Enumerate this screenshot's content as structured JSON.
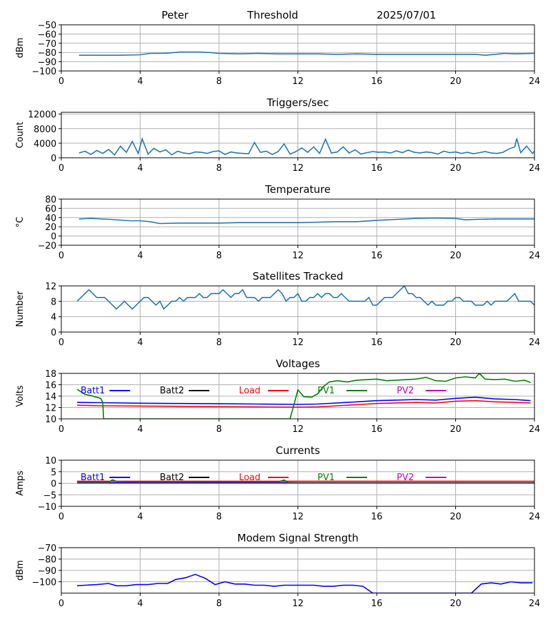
{
  "header": {
    "name": "Peter",
    "mode": "Threshold",
    "date": "2025/07/01"
  },
  "colors": {
    "default_series": "#1f77b4",
    "grid": "#b0b0b0",
    "batt1": "#0000ff",
    "batt2": "#000000",
    "load": "#ff0000",
    "pv1": "#008000",
    "pv2": "#bf00bf"
  },
  "chart_data": [
    {
      "type": "line",
      "title": "",
      "ylabel": "dBm",
      "xlim": [
        0,
        24
      ],
      "ylim": [
        -100,
        -50
      ],
      "xticks": [
        0,
        4,
        8,
        12,
        16,
        20,
        24
      ],
      "yticks": [
        -100,
        -90,
        -80,
        -70,
        -60,
        -50
      ],
      "ytick_labels": [
        "−100",
        "−90",
        "−80",
        "−70",
        "−60",
        "−50"
      ],
      "grid": true,
      "series": [
        {
          "color_key": "default_series",
          "x": [
            0.9,
            2,
            3,
            4,
            4.5,
            5,
            5.5,
            6,
            7,
            7.5,
            8,
            9,
            10,
            11,
            12,
            13,
            14,
            15,
            16,
            17,
            18,
            19,
            20,
            21,
            21.5,
            22,
            22.5,
            23,
            24
          ],
          "y": [
            -83,
            -83,
            -83,
            -82.5,
            -81,
            -81,
            -80.5,
            -79.5,
            -79.5,
            -80,
            -81,
            -81.5,
            -81,
            -81.5,
            -81.5,
            -81.5,
            -82,
            -81.5,
            -82,
            -82,
            -82,
            -82,
            -82,
            -82,
            -83,
            -82,
            -81,
            -81.5,
            -81
          ]
        }
      ]
    },
    {
      "type": "line",
      "title": "Triggers/sec",
      "ylabel": "Count",
      "xlim": [
        0,
        24
      ],
      "ylim": [
        0,
        12500
      ],
      "xticks": [
        0,
        4,
        8,
        12,
        16,
        20,
        24
      ],
      "yticks": [
        0,
        4000,
        8000,
        12000
      ],
      "ytick_labels": [
        "0",
        "4000",
        "8000",
        "12000"
      ],
      "grid": true,
      "series": [
        {
          "color_key": "default_series",
          "x": [
            0.9,
            1.2,
            1.5,
            1.8,
            2.1,
            2.4,
            2.7,
            3.0,
            3.3,
            3.6,
            3.9,
            4.1,
            4.4,
            4.7,
            5.0,
            5.3,
            5.6,
            5.9,
            6.2,
            6.5,
            6.8,
            7.1,
            7.4,
            7.7,
            8.0,
            8.3,
            8.6,
            8.9,
            9.2,
            9.5,
            9.8,
            10.1,
            10.4,
            10.7,
            11.0,
            11.3,
            11.6,
            11.9,
            12.2,
            12.5,
            12.8,
            13.1,
            13.4,
            13.7,
            14.0,
            14.3,
            14.6,
            14.9,
            15.2,
            15.5,
            15.8,
            16.1,
            16.4,
            16.7,
            17.0,
            17.3,
            17.6,
            17.9,
            18.2,
            18.5,
            18.8,
            19.1,
            19.4,
            19.7,
            20.0,
            20.3,
            20.6,
            20.9,
            21.2,
            21.5,
            21.8,
            22.1,
            22.4,
            22.7,
            23.0,
            23.1,
            23.3,
            23.6,
            23.9,
            24
          ],
          "y": [
            1300,
            1800,
            900,
            2000,
            1200,
            2300,
            800,
            3200,
            1500,
            4500,
            1200,
            5200,
            1000,
            2600,
            1600,
            2200,
            800,
            1800,
            1300,
            1100,
            1600,
            1500,
            1200,
            1700,
            1900,
            900,
            1600,
            1300,
            1200,
            1100,
            4200,
            1500,
            1800,
            900,
            1700,
            3800,
            1000,
            1700,
            2700,
            1500,
            3000,
            1200,
            5100,
            1300,
            1600,
            3000,
            1300,
            2200,
            1000,
            1400,
            1700,
            1500,
            1600,
            1300,
            1900,
            1400,
            2100,
            1500,
            1300,
            1600,
            1400,
            1000,
            1800,
            1400,
            1600,
            1200,
            1500,
            1100,
            1400,
            1700,
            1300,
            1200,
            1500,
            2400,
            3000,
            5300,
            1400,
            3200,
            1200,
            1800
          ]
        }
      ]
    },
    {
      "type": "line",
      "title": "Temperature",
      "ylabel": "°C",
      "xlim": [
        0,
        24
      ],
      "ylim": [
        -20,
        80
      ],
      "xticks": [
        0,
        4,
        8,
        12,
        16,
        20,
        24
      ],
      "yticks": [
        -20,
        0,
        20,
        40,
        60,
        80
      ],
      "ytick_labels": [
        "−20",
        "0",
        "20",
        "40",
        "60",
        "80"
      ],
      "grid": true,
      "series": [
        {
          "color_key": "default_series",
          "x": [
            0.9,
            1.5,
            2.5,
            3.5,
            4,
            4.5,
            5,
            6,
            7,
            8,
            9,
            10,
            11,
            12,
            13,
            14,
            15,
            16,
            17,
            18,
            19,
            20,
            20.5,
            21,
            22,
            23,
            24
          ],
          "y": [
            37,
            38,
            36,
            33,
            33,
            31,
            27,
            28,
            28,
            28,
            29,
            29,
            29,
            29,
            30,
            31,
            31,
            34,
            36,
            38,
            39,
            38,
            35,
            36,
            37,
            37,
            37
          ]
        }
      ]
    },
    {
      "type": "line",
      "title": "Satellites Tracked",
      "ylabel": "Number",
      "xlim": [
        0,
        24
      ],
      "ylim": [
        0,
        12
      ],
      "xticks": [
        0,
        4,
        8,
        12,
        16,
        20,
        24
      ],
      "yticks": [
        0,
        4,
        8,
        12
      ],
      "ytick_labels": [
        "0",
        "4",
        "8",
        "12"
      ],
      "grid": true,
      "series": [
        {
          "color_key": "default_series",
          "x": [
            0.8,
            1.0,
            1.2,
            1.4,
            1.6,
            1.8,
            2.0,
            2.2,
            2.4,
            2.6,
            2.8,
            3.0,
            3.2,
            3.4,
            3.6,
            3.8,
            4.0,
            4.2,
            4.4,
            4.6,
            4.8,
            5.0,
            5.2,
            5.4,
            5.6,
            5.8,
            6.0,
            6.2,
            6.4,
            6.6,
            6.8,
            7.0,
            7.2,
            7.4,
            7.6,
            7.8,
            8.0,
            8.2,
            8.4,
            8.6,
            8.8,
            9.0,
            9.2,
            9.4,
            9.6,
            9.8,
            10.0,
            10.2,
            10.4,
            10.6,
            10.8,
            11.0,
            11.2,
            11.4,
            11.6,
            11.8,
            12.0,
            12.2,
            12.4,
            12.6,
            12.8,
            13.0,
            13.2,
            13.4,
            13.6,
            13.8,
            14.0,
            14.2,
            14.4,
            14.6,
            14.8,
            15.0,
            15.2,
            15.4,
            15.6,
            15.8,
            16.0,
            16.2,
            16.4,
            16.6,
            16.8,
            17.0,
            17.2,
            17.4,
            17.6,
            17.8,
            18.0,
            18.2,
            18.4,
            18.6,
            18.8,
            19.0,
            19.2,
            19.4,
            19.6,
            19.8,
            20.0,
            20.2,
            20.4,
            20.6,
            20.8,
            21.0,
            21.2,
            21.4,
            21.6,
            21.8,
            22.0,
            22.2,
            22.4,
            22.6,
            22.8,
            23.0,
            23.2,
            23.4,
            23.6,
            23.8,
            24.0
          ],
          "y": [
            8,
            9,
            10,
            11,
            10,
            9,
            9,
            9,
            8,
            7,
            6,
            7,
            8,
            7,
            6,
            7,
            8,
            9,
            9,
            8,
            7,
            8,
            6,
            7,
            8,
            8,
            9,
            8,
            9,
            9,
            9,
            10,
            9,
            9,
            10,
            10,
            10,
            11,
            10,
            9,
            10,
            10,
            11,
            9,
            9,
            9,
            8,
            9,
            9,
            9,
            10,
            11,
            10,
            8,
            9,
            9,
            10,
            8,
            8,
            9,
            9,
            10,
            9,
            10,
            10,
            9,
            9,
            10,
            9,
            8,
            8,
            8,
            8,
            8,
            9,
            7,
            7,
            8,
            9,
            9,
            9,
            10,
            11,
            12,
            10,
            10,
            9,
            9,
            8,
            7,
            8,
            7,
            7,
            7,
            8,
            8,
            9,
            9,
            8,
            8,
            8,
            7,
            7,
            7,
            8,
            7,
            8,
            8,
            8,
            8,
            9,
            10,
            8,
            8,
            8,
            8,
            7
          ]
        }
      ]
    },
    {
      "type": "line",
      "title": "Voltages",
      "ylabel": "Volts",
      "xlim": [
        0,
        24
      ],
      "ylim": [
        10,
        18
      ],
      "xticks": [
        0,
        4,
        8,
        12,
        16,
        20,
        24
      ],
      "yticks": [
        10,
        12,
        14,
        16,
        18
      ],
      "ytick_labels": [
        "10",
        "12",
        "14",
        "16",
        "18"
      ],
      "grid": true,
      "legend": [
        "Batt1",
        "Batt2",
        "Load",
        "PV1",
        "PV2"
      ],
      "legend_placement": "top",
      "series": [
        {
          "name": "Batt1",
          "color_key": "batt1",
          "x": [
            0.8,
            2,
            4,
            6,
            8,
            10,
            12,
            13,
            14,
            15,
            16,
            17,
            18,
            19,
            20,
            21,
            22,
            23,
            23.8
          ],
          "y": [
            12.9,
            12.85,
            12.75,
            12.7,
            12.65,
            12.6,
            12.55,
            12.6,
            12.8,
            13.0,
            13.2,
            13.3,
            13.4,
            13.3,
            13.6,
            13.8,
            13.5,
            13.4,
            13.2
          ]
        },
        {
          "name": "Load",
          "color_key": "load",
          "x": [
            0.8,
            2,
            4,
            6,
            8,
            10,
            12,
            13,
            14,
            15,
            16,
            17,
            18,
            19,
            20,
            21,
            22,
            23,
            23.8
          ],
          "y": [
            12.4,
            12.3,
            12.25,
            12.2,
            12.15,
            12.1,
            12.05,
            12.1,
            12.3,
            12.5,
            12.7,
            12.8,
            12.9,
            12.8,
            13.1,
            13.2,
            13.0,
            12.9,
            12.8
          ]
        },
        {
          "name": "PV1",
          "color_key": "pv1",
          "x": [
            0.8,
            1.2,
            1.5,
            2.0,
            2.1,
            2.15,
            11.6,
            11.8,
            12.0,
            12.3,
            12.7,
            13.0,
            13.3,
            13.6,
            14.0,
            14.5,
            15.0,
            15.5,
            16.0,
            16.5,
            17.0,
            17.5,
            18.0,
            18.5,
            19.0,
            19.5,
            20.0,
            20.5,
            21.0,
            21.2,
            21.5,
            22.0,
            22.5,
            23.0,
            23.5,
            23.8
          ],
          "y": [
            15.2,
            14.3,
            14.1,
            13.6,
            12.9,
            10.0,
            10.0,
            12.5,
            15.1,
            13.9,
            13.8,
            14.4,
            15.7,
            16.5,
            16.7,
            16.5,
            16.8,
            16.9,
            17.0,
            16.7,
            16.8,
            16.9,
            17.0,
            17.3,
            16.7,
            16.6,
            17.2,
            17.4,
            17.2,
            18.0,
            17.0,
            16.9,
            17.0,
            16.6,
            16.8,
            16.4
          ]
        }
      ]
    },
    {
      "type": "line",
      "title": "Currents",
      "ylabel": "Amps",
      "xlim": [
        0,
        24
      ],
      "ylim": [
        -10,
        10
      ],
      "xticks": [
        0,
        4,
        8,
        12,
        16,
        20,
        24
      ],
      "yticks": [
        -10,
        -5,
        0,
        5,
        10
      ],
      "ytick_labels": [
        "−10",
        "−5",
        "0",
        "5",
        "10"
      ],
      "grid": true,
      "legend": [
        "Batt1",
        "Batt2",
        "Load",
        "PV1",
        "PV2"
      ],
      "legend_placement": "top",
      "series": [
        {
          "name": "Batt1",
          "color_key": "batt1",
          "x": [
            0.8,
            24
          ],
          "y": [
            0.3,
            0.3
          ]
        },
        {
          "name": "Load",
          "color_key": "load",
          "x": [
            0.8,
            4,
            8,
            12,
            16,
            20,
            24
          ],
          "y": [
            0.9,
            0.9,
            0.9,
            0.9,
            0.9,
            0.9,
            0.9
          ]
        },
        {
          "name": "PV1",
          "color_key": "pv1",
          "x": [
            0.8,
            2.4,
            2.6,
            2.8,
            4,
            8,
            11,
            11.3,
            11.5,
            12,
            24
          ],
          "y": [
            0.5,
            0.5,
            1.5,
            0.8,
            0.6,
            0.7,
            0.6,
            1.4,
            0.4,
            0.2,
            0.2
          ]
        },
        {
          "name": "PV2",
          "color_key": "pv2",
          "x": [
            0.8,
            24
          ],
          "y": [
            0.0,
            0.0
          ]
        }
      ]
    },
    {
      "type": "line",
      "title": "Modem Signal Strength",
      "ylabel": "dBm",
      "xlim": [
        0,
        24
      ],
      "ylim": [
        -110,
        -70
      ],
      "xticks": [
        0,
        4,
        8,
        12,
        16,
        20,
        24
      ],
      "yticks": [
        -100,
        -90,
        -80,
        -70
      ],
      "ytick_labels": [
        "−100",
        "−90",
        "−80",
        "−70"
      ],
      "grid": true,
      "series": [
        {
          "color_key": "batt1",
          "x": [
            0.8,
            1.2,
            1.8,
            2.4,
            2.8,
            3.3,
            3.8,
            4.4,
            4.9,
            5.4,
            5.8,
            6.3,
            6.8,
            7.3,
            7.8,
            8.3,
            8.8,
            9.3,
            9.8,
            10.3,
            10.8,
            11.3,
            11.8,
            12.3,
            12.8,
            13.3,
            13.8,
            14.3,
            14.8,
            15.3,
            15.8,
            20.8,
            21.3,
            21.8,
            22.3,
            22.8,
            23.3,
            23.9
          ],
          "y": [
            -103.5,
            -103,
            -102.5,
            -101.5,
            -103.5,
            -103.5,
            -102.5,
            -102.5,
            -101.5,
            -101.5,
            -98,
            -96.5,
            -93.5,
            -97,
            -102.5,
            -100,
            -102,
            -102,
            -103,
            -103,
            -104,
            -103,
            -103,
            -103,
            -103,
            -104,
            -104,
            -103,
            -103,
            -104,
            -110,
            -110,
            -102,
            -101,
            -102,
            -100,
            -101,
            -101
          ]
        }
      ]
    }
  ]
}
